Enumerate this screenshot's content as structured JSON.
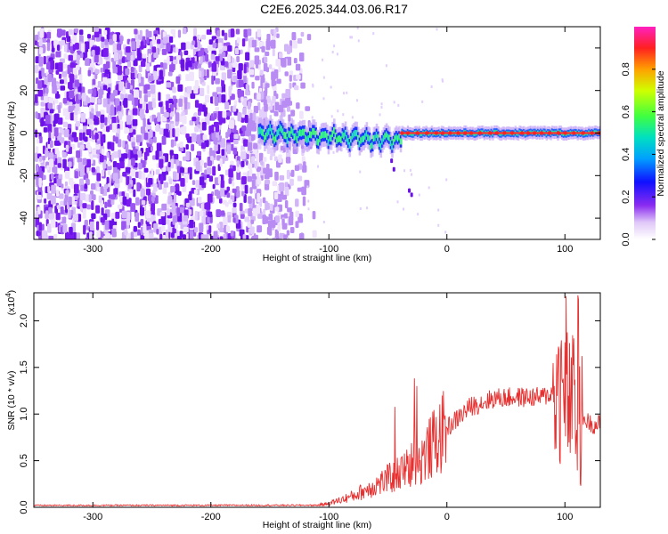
{
  "title": "C2E6.2025.344.03.06.R17",
  "colors": {
    "snr_line": "#e83030",
    "noise_purple": "#7a1cf0",
    "signal_core": "#ff3030",
    "signal_band": "#22e0a0"
  },
  "chart_data": [
    {
      "type": "heatmap",
      "xlabel": "Height of straight line (km)",
      "ylabel": "Frequency (Hz)",
      "xlim": [
        -350,
        130
      ],
      "ylim": [
        -50,
        50
      ],
      "x_ticks": [
        -300,
        -200,
        -100,
        0,
        100
      ],
      "x_tick_labels": [
        "-300",
        "-200",
        "-100",
        "0",
        "100"
      ],
      "y_ticks": [
        -40,
        -20,
        0,
        20,
        40
      ],
      "y_tick_labels": [
        "-40",
        "-20",
        "0",
        "20",
        "40"
      ],
      "grid": false,
      "colorbar": {
        "label": "Normalized spectral amplitude",
        "range": [
          0,
          1
        ],
        "ticks": [
          0.0,
          0.2,
          0.4,
          0.6,
          0.8
        ],
        "tick_labels": [
          "0.0",
          "0.2",
          "0.4",
          "0.6",
          "0.8"
        ],
        "colormap": "rainbow"
      },
      "noise_region_x": [
        -350,
        -130
      ],
      "signal_start_x": -160,
      "signal_center_y": 0
    },
    {
      "type": "line",
      "xlabel": "Height of straight line (km)",
      "ylabel": "SNR (10 * v/v)",
      "y_scale_label": "(x10",
      "y_scale_exp": "4",
      "y_scale_close": ")",
      "xlim": [
        -350,
        130
      ],
      "ylim": [
        0,
        23000
      ],
      "x_ticks": [
        -300,
        -200,
        -100,
        0,
        100
      ],
      "x_tick_labels": [
        "-300",
        "-200",
        "-100",
        "0",
        "100"
      ],
      "y_ticks": [
        0,
        5000,
        10000,
        15000,
        20000
      ],
      "y_tick_labels": [
        "0.0",
        "0.5",
        "1.0",
        "1.5",
        "2.0"
      ],
      "grid": false,
      "series": [
        {
          "envelope_x": [
            -350,
            -110,
            -100,
            -80,
            -60,
            -40,
            -20,
            0,
            20,
            40,
            60,
            80,
            95,
            105,
            115,
            125,
            130
          ],
          "envelope_y": [
            200,
            220,
            400,
            1200,
            2400,
            3600,
            5500,
            8500,
            10800,
            11700,
            11800,
            11800,
            12500,
            11000,
            9500,
            8800,
            9000
          ]
        }
      ]
    }
  ]
}
